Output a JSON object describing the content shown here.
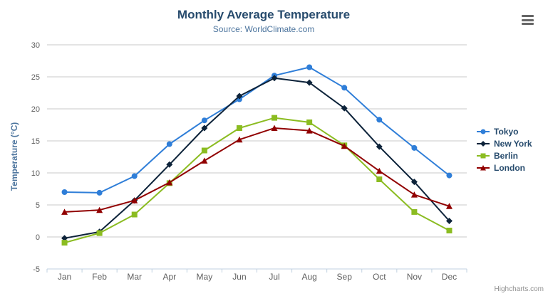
{
  "header": {
    "title": "Monthly Average Temperature",
    "subtitle": "Source: WorldClimate.com"
  },
  "credits": {
    "label": "Highcharts.com"
  },
  "export_menu": {
    "icon": "hamburger-icon"
  },
  "chart_data": {
    "type": "line",
    "title": "Monthly Average Temperature",
    "subtitle": "Source: WorldClimate.com",
    "xlabel": "",
    "ylabel": "Temperature (°C)",
    "ylim": [
      -5,
      30
    ],
    "ytick_step": 5,
    "grid": "horizontal-only",
    "legend_position": "right",
    "categories": [
      "Jan",
      "Feb",
      "Mar",
      "Apr",
      "May",
      "Jun",
      "Jul",
      "Aug",
      "Sep",
      "Oct",
      "Nov",
      "Dec"
    ],
    "series": [
      {
        "name": "Tokyo",
        "color": "#2f7ed8",
        "marker": "circle",
        "values": [
          7.0,
          6.9,
          9.5,
          14.5,
          18.2,
          21.5,
          25.2,
          26.5,
          23.3,
          18.3,
          13.9,
          9.6
        ]
      },
      {
        "name": "New York",
        "color": "#0d233a",
        "marker": "diamond",
        "values": [
          -0.2,
          0.8,
          5.7,
          11.3,
          17.0,
          22.0,
          24.8,
          24.1,
          20.1,
          14.1,
          8.6,
          2.5
        ]
      },
      {
        "name": "Berlin",
        "color": "#8bbc21",
        "marker": "square",
        "values": [
          -0.9,
          0.6,
          3.5,
          8.4,
          13.5,
          17.0,
          18.6,
          17.9,
          14.3,
          9.0,
          3.9,
          1.0
        ]
      },
      {
        "name": "London",
        "color": "#910000",
        "marker": "triangle",
        "values": [
          3.9,
          4.2,
          5.7,
          8.5,
          11.9,
          15.2,
          17.0,
          16.6,
          14.2,
          10.3,
          6.6,
          4.8
        ]
      }
    ],
    "axis_colors": {
      "grid": "#c9c9c9",
      "axis_line": "#c0d0e0",
      "tick": "#c0d0e0",
      "label": "#606060"
    }
  }
}
